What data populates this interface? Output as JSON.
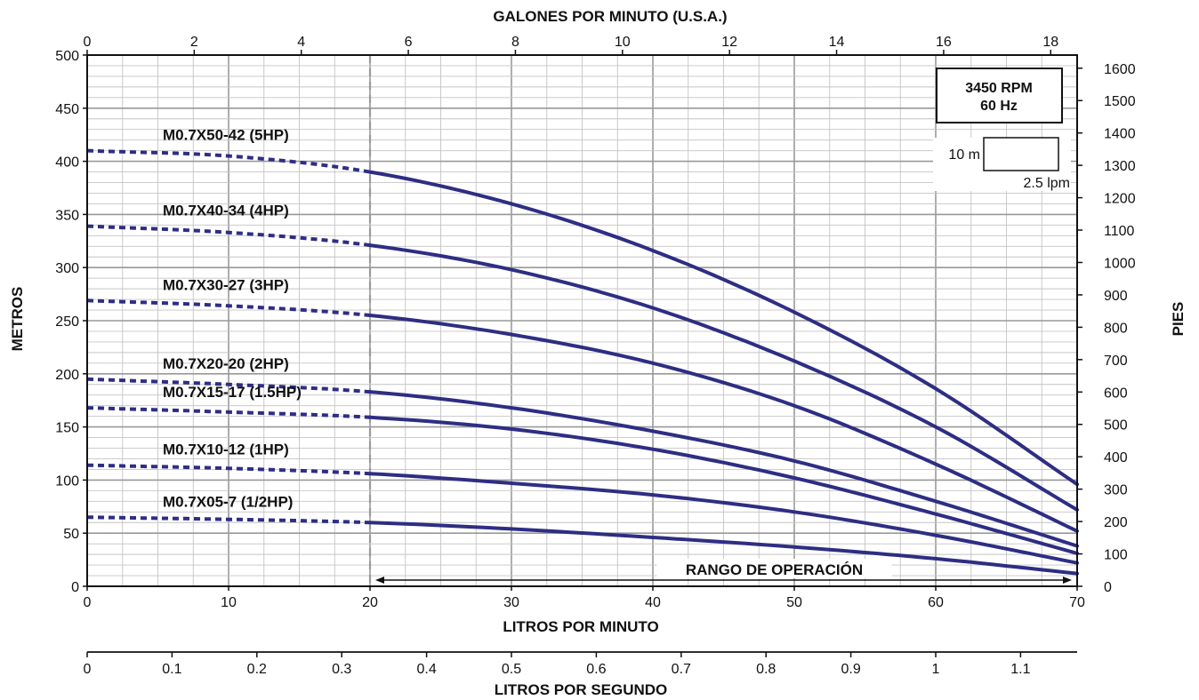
{
  "chart_data": {
    "type": "line",
    "title": "",
    "xlabel": "LITROS POR MINUTO",
    "ylabel": "METROS",
    "x_top_label": "GALONES POR MINUTO (U.S.A.)",
    "y_right_label": "PIES",
    "x_bottom2_label": "LITROS POR SEGUNDO",
    "xlim": [
      0,
      70
    ],
    "ylim": [
      0,
      500
    ],
    "x_ticks": [
      0,
      10,
      20,
      30,
      40,
      50,
      60,
      70
    ],
    "y_ticks": [
      0,
      50,
      100,
      150,
      200,
      250,
      300,
      350,
      400,
      450,
      500
    ],
    "x_top_ticks": [
      "0",
      "2",
      "4",
      "6",
      "8",
      "10",
      "12",
      "14",
      "16",
      "18"
    ],
    "y_right_ticks": [
      "0",
      "100",
      "200",
      "300",
      "400",
      "500",
      "600",
      "700",
      "800",
      "900",
      "1000",
      "1100",
      "1200",
      "1300",
      "1400",
      "1500",
      "1600"
    ],
    "x_lps_ticks": [
      "0",
      "0.1",
      "0.2",
      "0.3",
      "0.4",
      "0.5",
      "0.6",
      "0.7",
      "0.8",
      "0.9",
      "1",
      "1.1"
    ],
    "grid": true,
    "operating_range": {
      "label": "RANGO DE OPERACIÓN",
      "x_start": 20,
      "x_end": 70
    },
    "rpm_box": {
      "line1": "3450 RPM",
      "line2": "60 Hz"
    },
    "scale_box": {
      "height_label": "10 m",
      "width_label": "2.5 lpm"
    },
    "series": [
      {
        "name": "M0.7X50-42 (5HP)",
        "x": [
          0,
          10,
          20,
          30,
          40,
          50,
          60,
          70
        ],
        "y": [
          410,
          405,
          390,
          360,
          316,
          258,
          186,
          96
        ]
      },
      {
        "name": "M0.7X40-34 (4HP)",
        "x": [
          0,
          10,
          20,
          30,
          40,
          50,
          60,
          70
        ],
        "y": [
          339,
          333,
          321,
          298,
          262,
          212,
          150,
          72
        ]
      },
      {
        "name": "M0.7X30-27 (3HP)",
        "x": [
          0,
          10,
          20,
          30,
          40,
          50,
          60,
          70
        ],
        "y": [
          269,
          264,
          255,
          237,
          210,
          170,
          115,
          52
        ]
      },
      {
        "name": "M0.7X20-20 (2HP)",
        "x": [
          0,
          10,
          20,
          30,
          40,
          50,
          60,
          70
        ],
        "y": [
          195,
          190,
          183,
          168,
          146,
          118,
          80,
          38
        ]
      },
      {
        "name": "M0.7X15-17 (1.5HP)",
        "x": [
          0,
          10,
          20,
          30,
          40,
          50,
          60,
          70
        ],
        "y": [
          168,
          164,
          159,
          148,
          129,
          102,
          68,
          31
        ]
      },
      {
        "name": "M0.7X10-12 (1HP)",
        "x": [
          0,
          10,
          20,
          30,
          40,
          50,
          60,
          70
        ],
        "y": [
          114,
          111,
          106,
          97,
          86,
          70,
          48,
          22
        ]
      },
      {
        "name": "M0.7X05-7 (1/2HP)",
        "x": [
          0,
          10,
          20,
          30,
          40,
          50,
          60,
          70
        ],
        "y": [
          65,
          63,
          60,
          54,
          46,
          37,
          26,
          12
        ]
      }
    ],
    "colors": {
      "curve": "#2d2e83",
      "grid_major": "#999999",
      "grid_minor": "#c4c4c4",
      "divider": "#9a9a9a"
    }
  }
}
